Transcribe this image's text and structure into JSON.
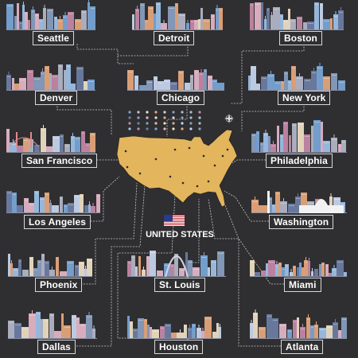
{
  "country": {
    "title": "UNITED STATES",
    "map_color": "#e3b55c",
    "flag_colors": {
      "red": "#c8313e",
      "white": "#ffffff",
      "blue": "#2b3a8b"
    }
  },
  "palette": {
    "background": "#2f2f31",
    "connector": "#c9c9c9",
    "label_border": "#d8d8d8",
    "skyline_colors": [
      "#7aa7d8",
      "#9fc3ea",
      "#c9d8f0",
      "#e6b7c9",
      "#c78aa8",
      "#8aa0c0",
      "#f0e2c6",
      "#6e7fa6",
      "#b4b9c9",
      "#e9a87c"
    ]
  },
  "cities": [
    {
      "id": "seattle",
      "label": "Seattle"
    },
    {
      "id": "detroit",
      "label": "Detroit"
    },
    {
      "id": "boston",
      "label": "Boston"
    },
    {
      "id": "denver",
      "label": "Denver"
    },
    {
      "id": "chicago",
      "label": "Chicago"
    },
    {
      "id": "new-york",
      "label": "New York"
    },
    {
      "id": "san-francisco",
      "label": "San Francisco"
    },
    {
      "id": "philadelphia",
      "label": "Philadelphia"
    },
    {
      "id": "los-angeles",
      "label": "Los Angeles"
    },
    {
      "id": "washington",
      "label": "Washington"
    },
    {
      "id": "phoenix",
      "label": "Phoenix"
    },
    {
      "id": "st-louis",
      "label": "St. Louis"
    },
    {
      "id": "miami",
      "label": "Miami"
    },
    {
      "id": "dallas",
      "label": "Dallas"
    },
    {
      "id": "houston",
      "label": "Houston"
    },
    {
      "id": "atlanta",
      "label": "Atlanta"
    }
  ],
  "legend": {
    "icon_count": 36
  }
}
